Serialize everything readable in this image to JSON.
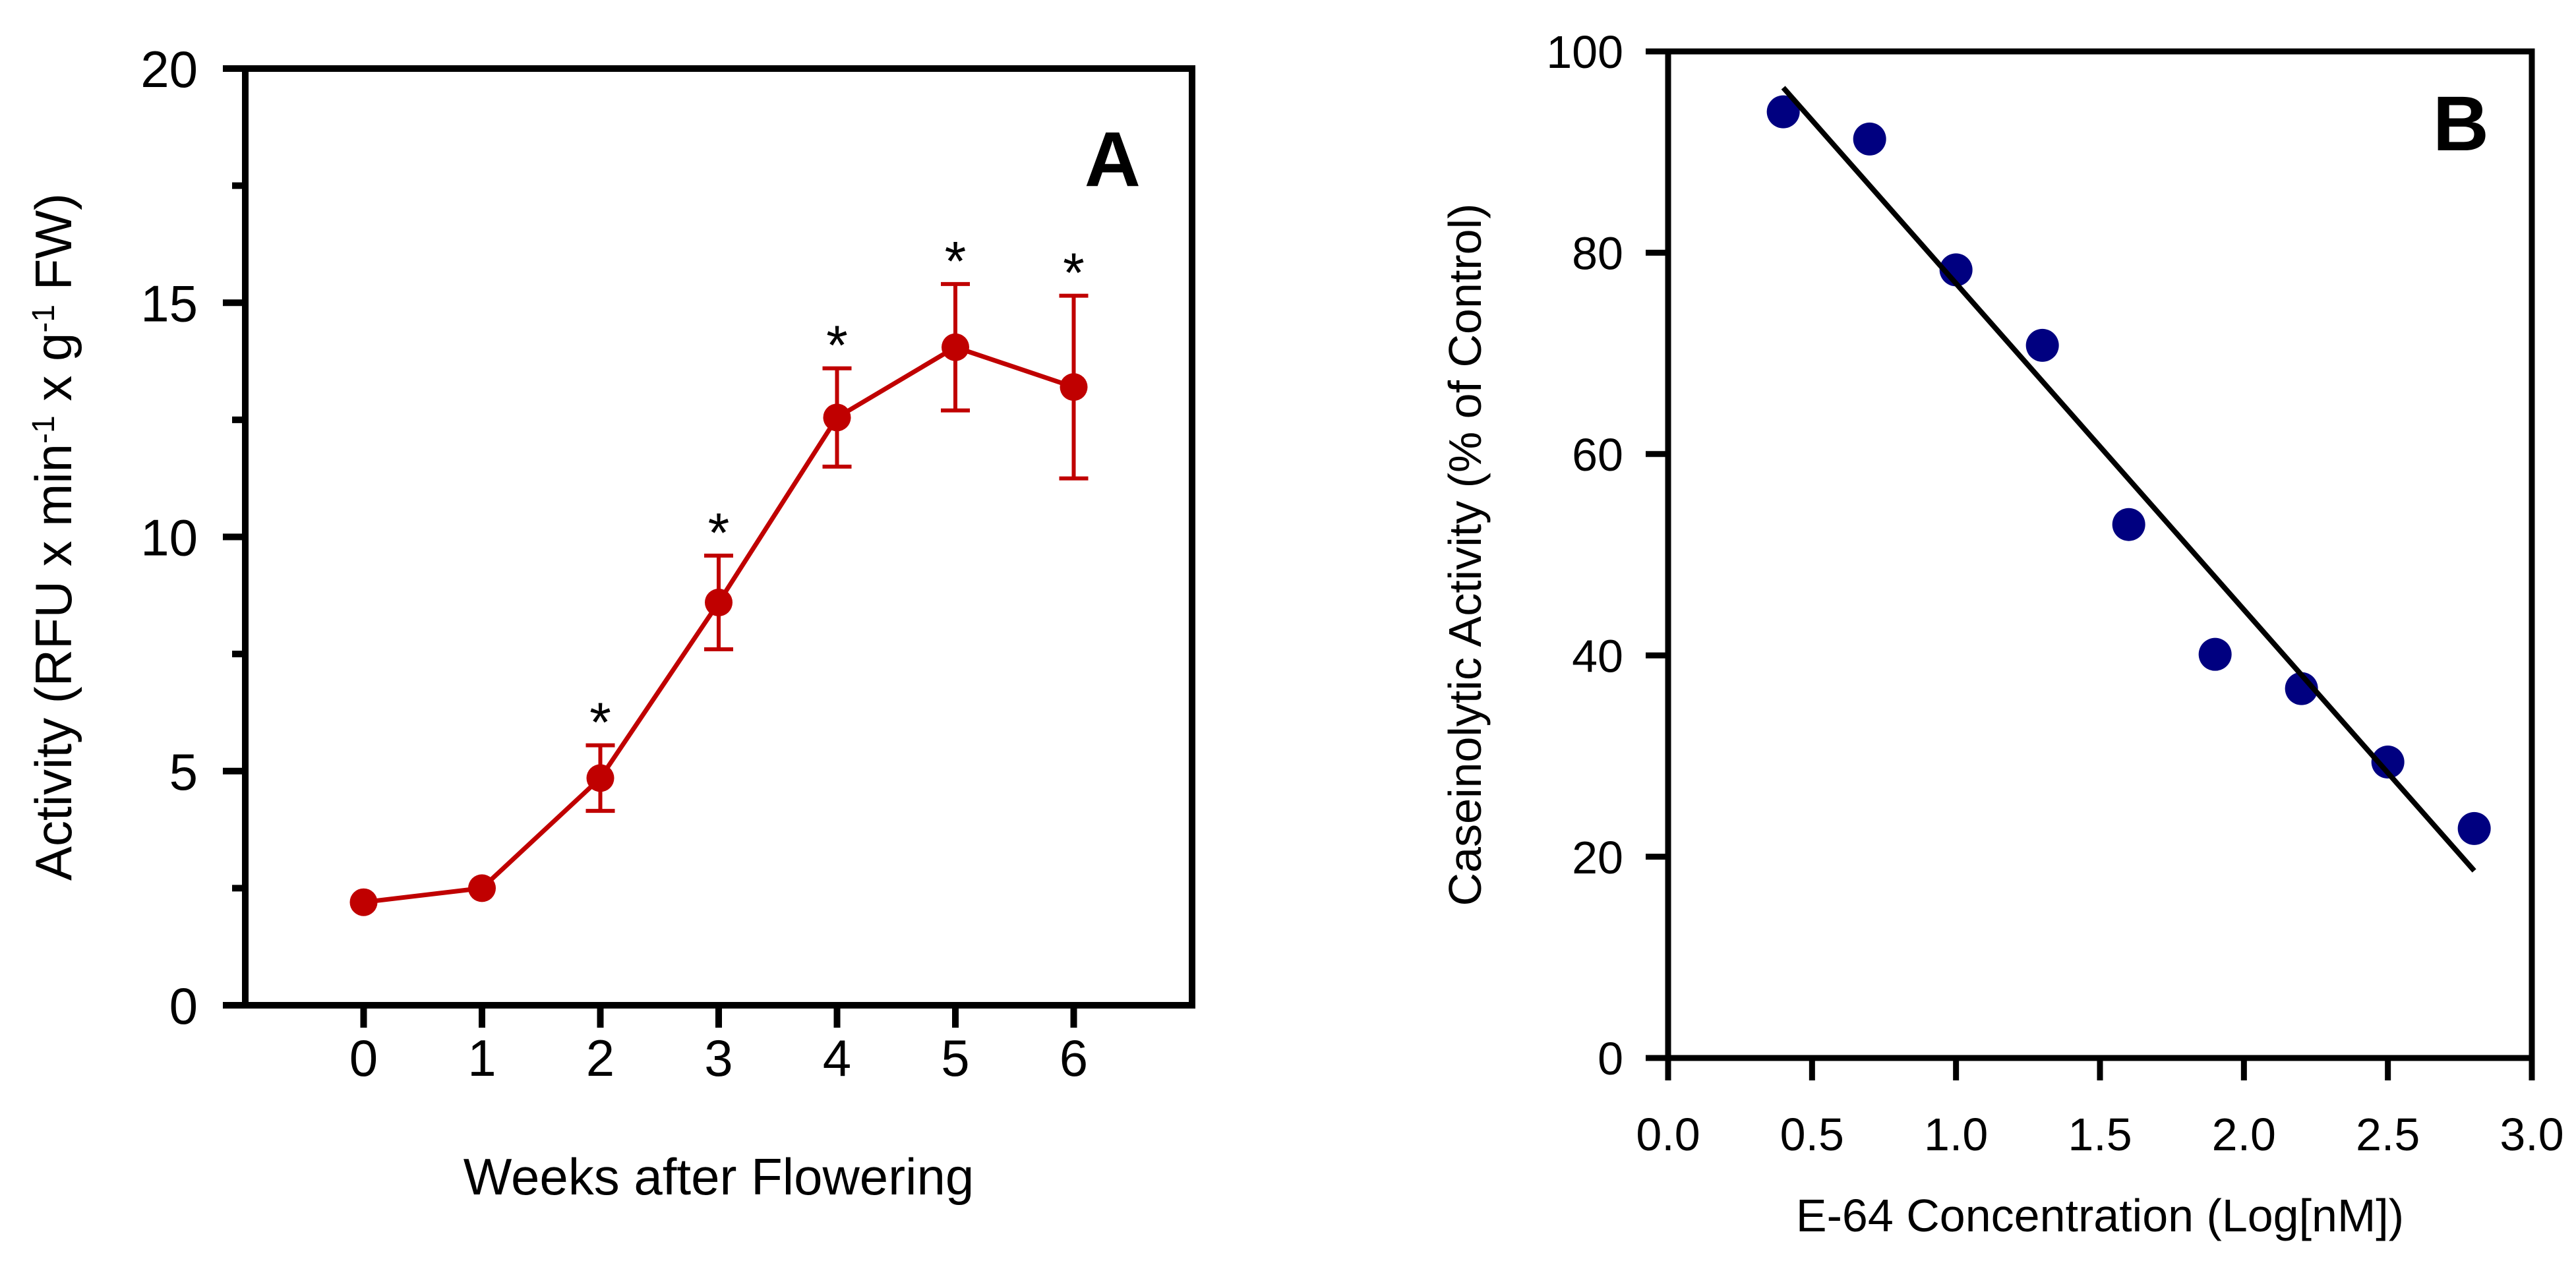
{
  "chart_data": [
    {
      "panel": "A",
      "type": "line",
      "xlabel": "Weeks after Flowering",
      "ylabel": {
        "parts": [
          {
            "text": "Activity (RFU x min"
          },
          {
            "text": "-1",
            "sup": true
          },
          {
            "text": " x g"
          },
          {
            "text": "-1",
            "sup": true
          },
          {
            "text": " FW)"
          }
        ]
      },
      "xlim": [
        -1,
        7
      ],
      "ylim": [
        0,
        20
      ],
      "xticks": [
        "0",
        "1",
        "2",
        "3",
        "4",
        "5",
        "6"
      ],
      "yticks": [
        "0",
        "5",
        "10",
        "15",
        "20"
      ],
      "series": [
        {
          "name": "Activity",
          "x": [
            0,
            1,
            2,
            3,
            4,
            5,
            6
          ],
          "y": [
            2.2,
            2.5,
            4.85,
            8.6,
            12.55,
            14.05,
            13.2
          ],
          "err": [
            0,
            0,
            0.7,
            1.0,
            1.05,
            1.35,
            1.95
          ],
          "significant": [
            false,
            false,
            true,
            true,
            true,
            true,
            true
          ],
          "color": "#c00000"
        }
      ],
      "significance_marker": "*"
    },
    {
      "panel": "B",
      "type": "scatter",
      "xlabel": "E-64 Concentration (Log[nM])",
      "ylabel": {
        "parts": [
          {
            "text": "Caseinolytic Activity (% of Control)"
          }
        ]
      },
      "xlim": [
        0,
        3
      ],
      "ylim": [
        0,
        100
      ],
      "xticks": [
        "0.0",
        "0.5",
        "1.0",
        "1.5",
        "2.0",
        "2.5",
        "3.0"
      ],
      "yticks": [
        "0",
        "20",
        "40",
        "60",
        "80",
        "100"
      ],
      "series": [
        {
          "name": "Caseinolytic Activity",
          "x": [
            0.4,
            0.7,
            1.0,
            1.3,
            1.6,
            1.9,
            2.2,
            2.5,
            2.8
          ],
          "y": [
            94,
            91.3,
            78.3,
            70.8,
            53,
            40.1,
            36.7,
            29.4,
            22.8
          ],
          "color": "#000080"
        }
      ],
      "fit": {
        "type": "linear",
        "x": [
          0.4,
          2.8
        ],
        "y": [
          96.4,
          18.6
        ],
        "color": "#000000"
      }
    }
  ]
}
